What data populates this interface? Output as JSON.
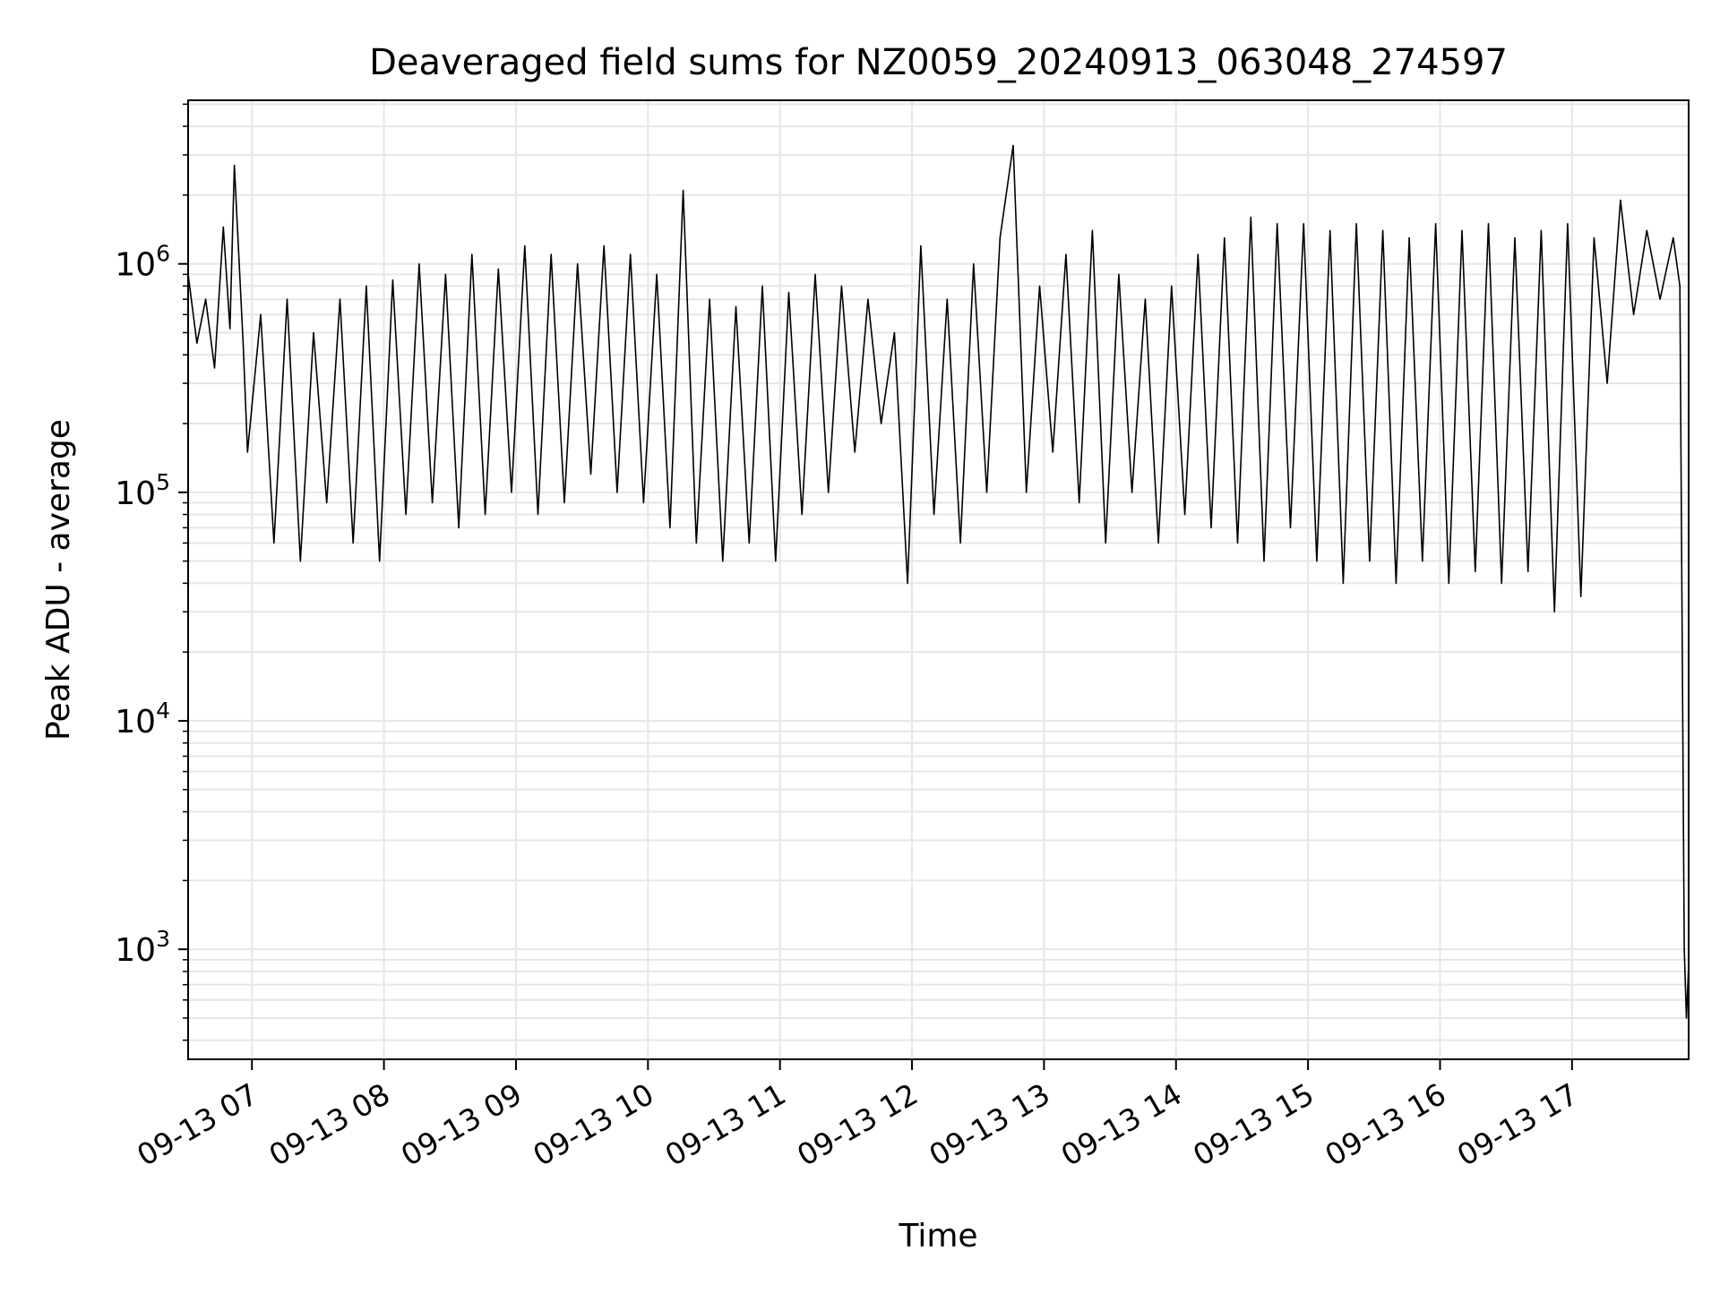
{
  "chart_data": {
    "type": "line",
    "title": "Deaveraged field sums for NZ0059_20240913_063048_274597",
    "xlabel": "Time",
    "ylabel": "Peak ADU - average",
    "yscale": "log",
    "ylim": [
      330,
      5200000
    ],
    "xlim": [
      "09-13 06:31",
      "09-13 17:53"
    ],
    "xticks": [
      "09-13 07",
      "09-13 08",
      "09-13 09",
      "09-13 10",
      "09-13 11",
      "09-13 12",
      "09-13 13",
      "09-13 14",
      "09-13 15",
      "09-13 16",
      "09-13 17"
    ],
    "yticks": [
      {
        "value": 1000,
        "base": "10",
        "exp": "3"
      },
      {
        "value": 10000,
        "base": "10",
        "exp": "4"
      },
      {
        "value": 100000,
        "base": "10",
        "exp": "5"
      },
      {
        "value": 1000000,
        "base": "10",
        "exp": "6"
      }
    ],
    "grid": true,
    "line_color": "#000000",
    "grid_color": "#e6e6e6",
    "series": [
      {
        "x": [
          "06:31",
          "06:35",
          "06:39",
          "06:43",
          "06:47",
          "06:50",
          "06:52",
          "06:56",
          "06:58",
          "07:04",
          "07:10",
          "07:16",
          "07:22",
          "07:28",
          "07:34",
          "07:40",
          "07:46",
          "07:52",
          "07:58",
          "08:04",
          "08:10",
          "08:16",
          "08:22",
          "08:28",
          "08:34",
          "08:40",
          "08:46",
          "08:52",
          "08:58",
          "09:04",
          "09:10",
          "09:16",
          "09:22",
          "09:28",
          "09:34",
          "09:40",
          "09:46",
          "09:52",
          "09:58",
          "10:04",
          "10:10",
          "10:16",
          "10:22",
          "10:28",
          "10:34",
          "10:40",
          "10:46",
          "10:52",
          "10:58",
          "11:04",
          "11:10",
          "11:16",
          "11:22",
          "11:28",
          "11:34",
          "11:40",
          "11:46",
          "11:52",
          "11:58",
          "12:04",
          "12:10",
          "12:16",
          "12:22",
          "12:28",
          "12:34",
          "12:40",
          "12:46",
          "12:52",
          "12:58",
          "13:04",
          "13:10",
          "13:16",
          "13:22",
          "13:28",
          "13:34",
          "13:40",
          "13:46",
          "13:52",
          "13:58",
          "14:04",
          "14:10",
          "14:16",
          "14:22",
          "14:28",
          "14:34",
          "14:40",
          "14:46",
          "14:52",
          "14:58",
          "15:04",
          "15:10",
          "15:16",
          "15:22",
          "15:28",
          "15:34",
          "15:40",
          "15:46",
          "15:52",
          "15:58",
          "16:04",
          "16:10",
          "16:16",
          "16:22",
          "16:28",
          "16:34",
          "16:40",
          "16:46",
          "16:52",
          "16:58",
          "17:04",
          "17:10",
          "17:16",
          "17:22",
          "17:28",
          "17:34",
          "17:40",
          "17:46",
          "17:49",
          "17:51",
          "17:52",
          "17:53"
        ],
        "y": [
          900000,
          450000,
          700000,
          350000,
          1450000,
          520000,
          2700000,
          450000,
          150000,
          600000,
          60000,
          700000,
          50000,
          500000,
          90000,
          700000,
          60000,
          800000,
          50000,
          850000,
          80000,
          1000000,
          90000,
          900000,
          70000,
          1100000,
          80000,
          950000,
          100000,
          1200000,
          80000,
          1100000,
          90000,
          1000000,
          120000,
          1200000,
          100000,
          1100000,
          90000,
          900000,
          70000,
          2100000,
          60000,
          700000,
          50000,
          650000,
          60000,
          800000,
          50000,
          750000,
          80000,
          900000,
          100000,
          800000,
          150000,
          700000,
          200000,
          500000,
          40000,
          1200000,
          80000,
          700000,
          60000,
          1000000,
          100000,
          1300000,
          3300000,
          100000,
          800000,
          150000,
          1100000,
          90000,
          1400000,
          60000,
          900000,
          100000,
          700000,
          60000,
          800000,
          80000,
          1100000,
          70000,
          1300000,
          60000,
          1600000,
          50000,
          1500000,
          70000,
          1500000,
          50000,
          1400000,
          40000,
          1500000,
          50000,
          1400000,
          40000,
          1300000,
          50000,
          1500000,
          40000,
          1400000,
          45000,
          1500000,
          40000,
          1300000,
          45000,
          1400000,
          30000,
          1500000,
          35000,
          1300000,
          300000,
          1900000,
          600000,
          1400000,
          700000,
          1300000,
          800000,
          1000,
          500,
          850
        ]
      }
    ]
  }
}
